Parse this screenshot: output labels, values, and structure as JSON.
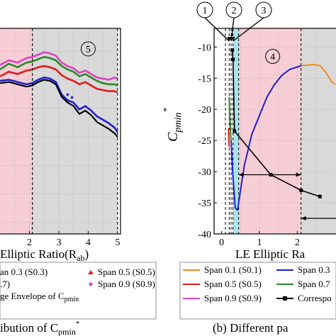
{
  "chart_data": [
    {
      "type": "line",
      "panel": "left",
      "region_marker": "5",
      "xlabel": "Elliptic Ratio(R",
      "xlabel_sub": "ab",
      "xlabel_tail": ")",
      "xlim": [
        0.95,
        5.1
      ],
      "ylim": [
        -42,
        -6
      ],
      "xticks": [
        "2",
        "3",
        "4",
        "5"
      ],
      "xtick_values": [
        2,
        3,
        4,
        5
      ],
      "vlines": [
        2.1,
        5.0
      ],
      "caption": "ibution of C",
      "caption_sub": "pmin",
      "caption_sup": "*",
      "legend": [
        {
          "label": "an 0.3 (S0.3)",
          "color": "#1f1fd0",
          "marker": "none"
        },
        {
          "label": "Span 0.5 (S0.5)",
          "color": "#e01b1b",
          "marker": "triangle"
        },
        {
          "label": ".7)",
          "color": "#2a8a2a",
          "marker": "none"
        },
        {
          "label": "Span 0.9 (S0.9)",
          "color": "#e040c0",
          "marker": "circle"
        },
        {
          "label": "ge Envelope  of C",
          "sub": "pmin",
          "color": "#000000",
          "marker": "none"
        }
      ],
      "series": [
        {
          "color": "#e040c0",
          "x": [
            1.0,
            1.3,
            1.6,
            1.9,
            2.1,
            2.3,
            2.5,
            2.7,
            2.9,
            3.1,
            3.3,
            3.5,
            3.7,
            3.9,
            4.1,
            4.3,
            4.5,
            4.7,
            4.9,
            5.0
          ],
          "y": [
            -12.4,
            -11.6,
            -12,
            -11.2,
            -11,
            -10.6,
            -10.2,
            -10.4,
            -10.8,
            -12,
            -12.6,
            -13,
            -13.8,
            -13.4,
            -14,
            -14.6,
            -14.8,
            -15,
            -14.6,
            -14.8
          ]
        },
        {
          "color": "#2a8a2a",
          "x": [
            1.0,
            1.3,
            1.6,
            1.9,
            2.1,
            2.3,
            2.5,
            2.7,
            2.9,
            3.1,
            3.3,
            3.5,
            3.7,
            3.9,
            4.1,
            4.3,
            4.5,
            4.7,
            4.9,
            5.0
          ],
          "y": [
            -13.2,
            -12.2,
            -12.8,
            -12,
            -11.8,
            -11.4,
            -11,
            -11.2,
            -11.6,
            -12.6,
            -13.2,
            -13.6,
            -14.4,
            -14,
            -14.6,
            -15.2,
            -15.6,
            -15.8,
            -15.8,
            -16
          ]
        },
        {
          "color": "#e01b1b",
          "x": [
            1.0,
            1.3,
            1.6,
            1.9,
            2.1,
            2.3,
            2.5,
            2.7,
            2.9,
            3.1,
            3.3,
            3.5,
            3.7,
            3.9,
            4.1,
            4.3,
            4.5,
            4.7,
            4.9,
            5.0
          ],
          "y": [
            -14.4,
            -13.6,
            -14,
            -13.4,
            -13.2,
            -12.8,
            -12.6,
            -12.8,
            -13.2,
            -14.2,
            -14.8,
            -15.2,
            -15.8,
            -15.4,
            -16,
            -16.6,
            -16.8,
            -17,
            -17,
            -17.2
          ]
        },
        {
          "color": "#1f1fd0",
          "x": [
            1.0,
            1.3,
            1.6,
            1.9,
            2.1,
            2.3,
            2.5,
            2.7,
            2.9,
            3.1,
            3.3,
            3.5,
            3.7,
            3.9,
            4.1,
            4.3,
            4.5,
            4.7,
            4.9,
            5.0
          ],
          "y": [
            -15.2,
            -15,
            -15.4,
            -15.8,
            -15.6,
            -15,
            -14.6,
            -14.8,
            -15.4,
            -17.6,
            -18.6,
            -19,
            -20.2,
            -19.6,
            -20.4,
            -21.4,
            -22,
            -22.6,
            -23.4,
            -24.2
          ]
        },
        {
          "color": "#000000",
          "x": [
            1.0,
            1.3,
            1.6,
            1.9,
            2.1,
            2.3,
            2.5,
            2.7,
            2.9,
            3.1,
            3.3,
            3.5,
            3.7,
            3.9,
            4.1,
            4.3,
            4.5,
            4.7,
            4.9,
            5.0
          ],
          "y": [
            -15.6,
            -15.4,
            -15.8,
            -16.2,
            -16,
            -15.4,
            -15,
            -15.2,
            -15.8,
            -18,
            -19,
            -19.6,
            -21,
            -20.4,
            -21.2,
            -22.4,
            -23,
            -23.6,
            -24.4,
            -25
          ]
        }
      ]
    },
    {
      "type": "line",
      "panel": "right",
      "xlabel": "LE Elliptic Ra",
      "ylabel": "C",
      "ylabel_sub": "pmin",
      "ylabel_sup": "*",
      "xlim": [
        -0.2,
        3.1
      ],
      "ylim": [
        -40,
        -7
      ],
      "yticks": [
        "-10",
        "-15",
        "-20",
        "-25",
        "-30",
        "-35",
        "-40"
      ],
      "ytick_values": [
        -10,
        -15,
        -20,
        -25,
        -30,
        -35,
        -40
      ],
      "xticks": [
        "0",
        "1",
        "2"
      ],
      "xtick_values": [
        0,
        1,
        2
      ],
      "region_marker": "4",
      "top_markers": [
        "1",
        "2",
        "3"
      ],
      "vlines": [
        0.1,
        0.2,
        0.25,
        0.3,
        0.45,
        2.1
      ],
      "caption": "(b) Different pa",
      "legend": [
        {
          "label": "Span 0.1 (S0.1)",
          "color": "#f08a1c"
        },
        {
          "label": "Span 0.3",
          "color": "#1f1fd0"
        },
        {
          "label": "Span 0.5 (S0.5)",
          "color": "#e01b1b"
        },
        {
          "label": "Span 0.7",
          "color": "#2a8a2a"
        },
        {
          "label": "Span 0.9 (S0.9)",
          "color": "#e040c0"
        },
        {
          "label": "Correspo",
          "color": "#000000",
          "marker": "square"
        }
      ],
      "series": [
        {
          "color": "#f08a1c",
          "x": [
            2.1,
            2.3,
            2.45,
            2.6,
            2.75,
            2.9,
            3.0
          ],
          "y": [
            -13,
            -12.9,
            -12.8,
            -13,
            -14,
            -15.5,
            -16
          ]
        },
        {
          "color": "#1f1fd0",
          "x": [
            0.25,
            0.3,
            0.36,
            0.42,
            0.5,
            0.6,
            0.8,
            1.0,
            1.2,
            1.4,
            1.6,
            1.8,
            2.0,
            2.1
          ],
          "y": [
            -25,
            -31,
            -35.8,
            -36.2,
            -33,
            -29,
            -24,
            -21,
            -18,
            -16,
            -14.5,
            -13.6,
            -13.2,
            -13
          ]
        },
        {
          "color": "#e01b1b",
          "x": [
            0.18,
            0.19,
            0.2
          ],
          "y": [
            -23,
            -24.5,
            -26
          ]
        },
        {
          "color": "#2a8a2a",
          "x": [
            0.2,
            0.22,
            0.25
          ],
          "y": [
            -18,
            -22,
            -25
          ]
        },
        {
          "color": "#000000",
          "x": [
            0.28,
            0.3,
            0.34,
            1.3,
            2.1,
            2.6
          ],
          "y": [
            -10.5,
            -12,
            -23.5,
            -30.5,
            -33,
            -34
          ]
        }
      ]
    }
  ]
}
